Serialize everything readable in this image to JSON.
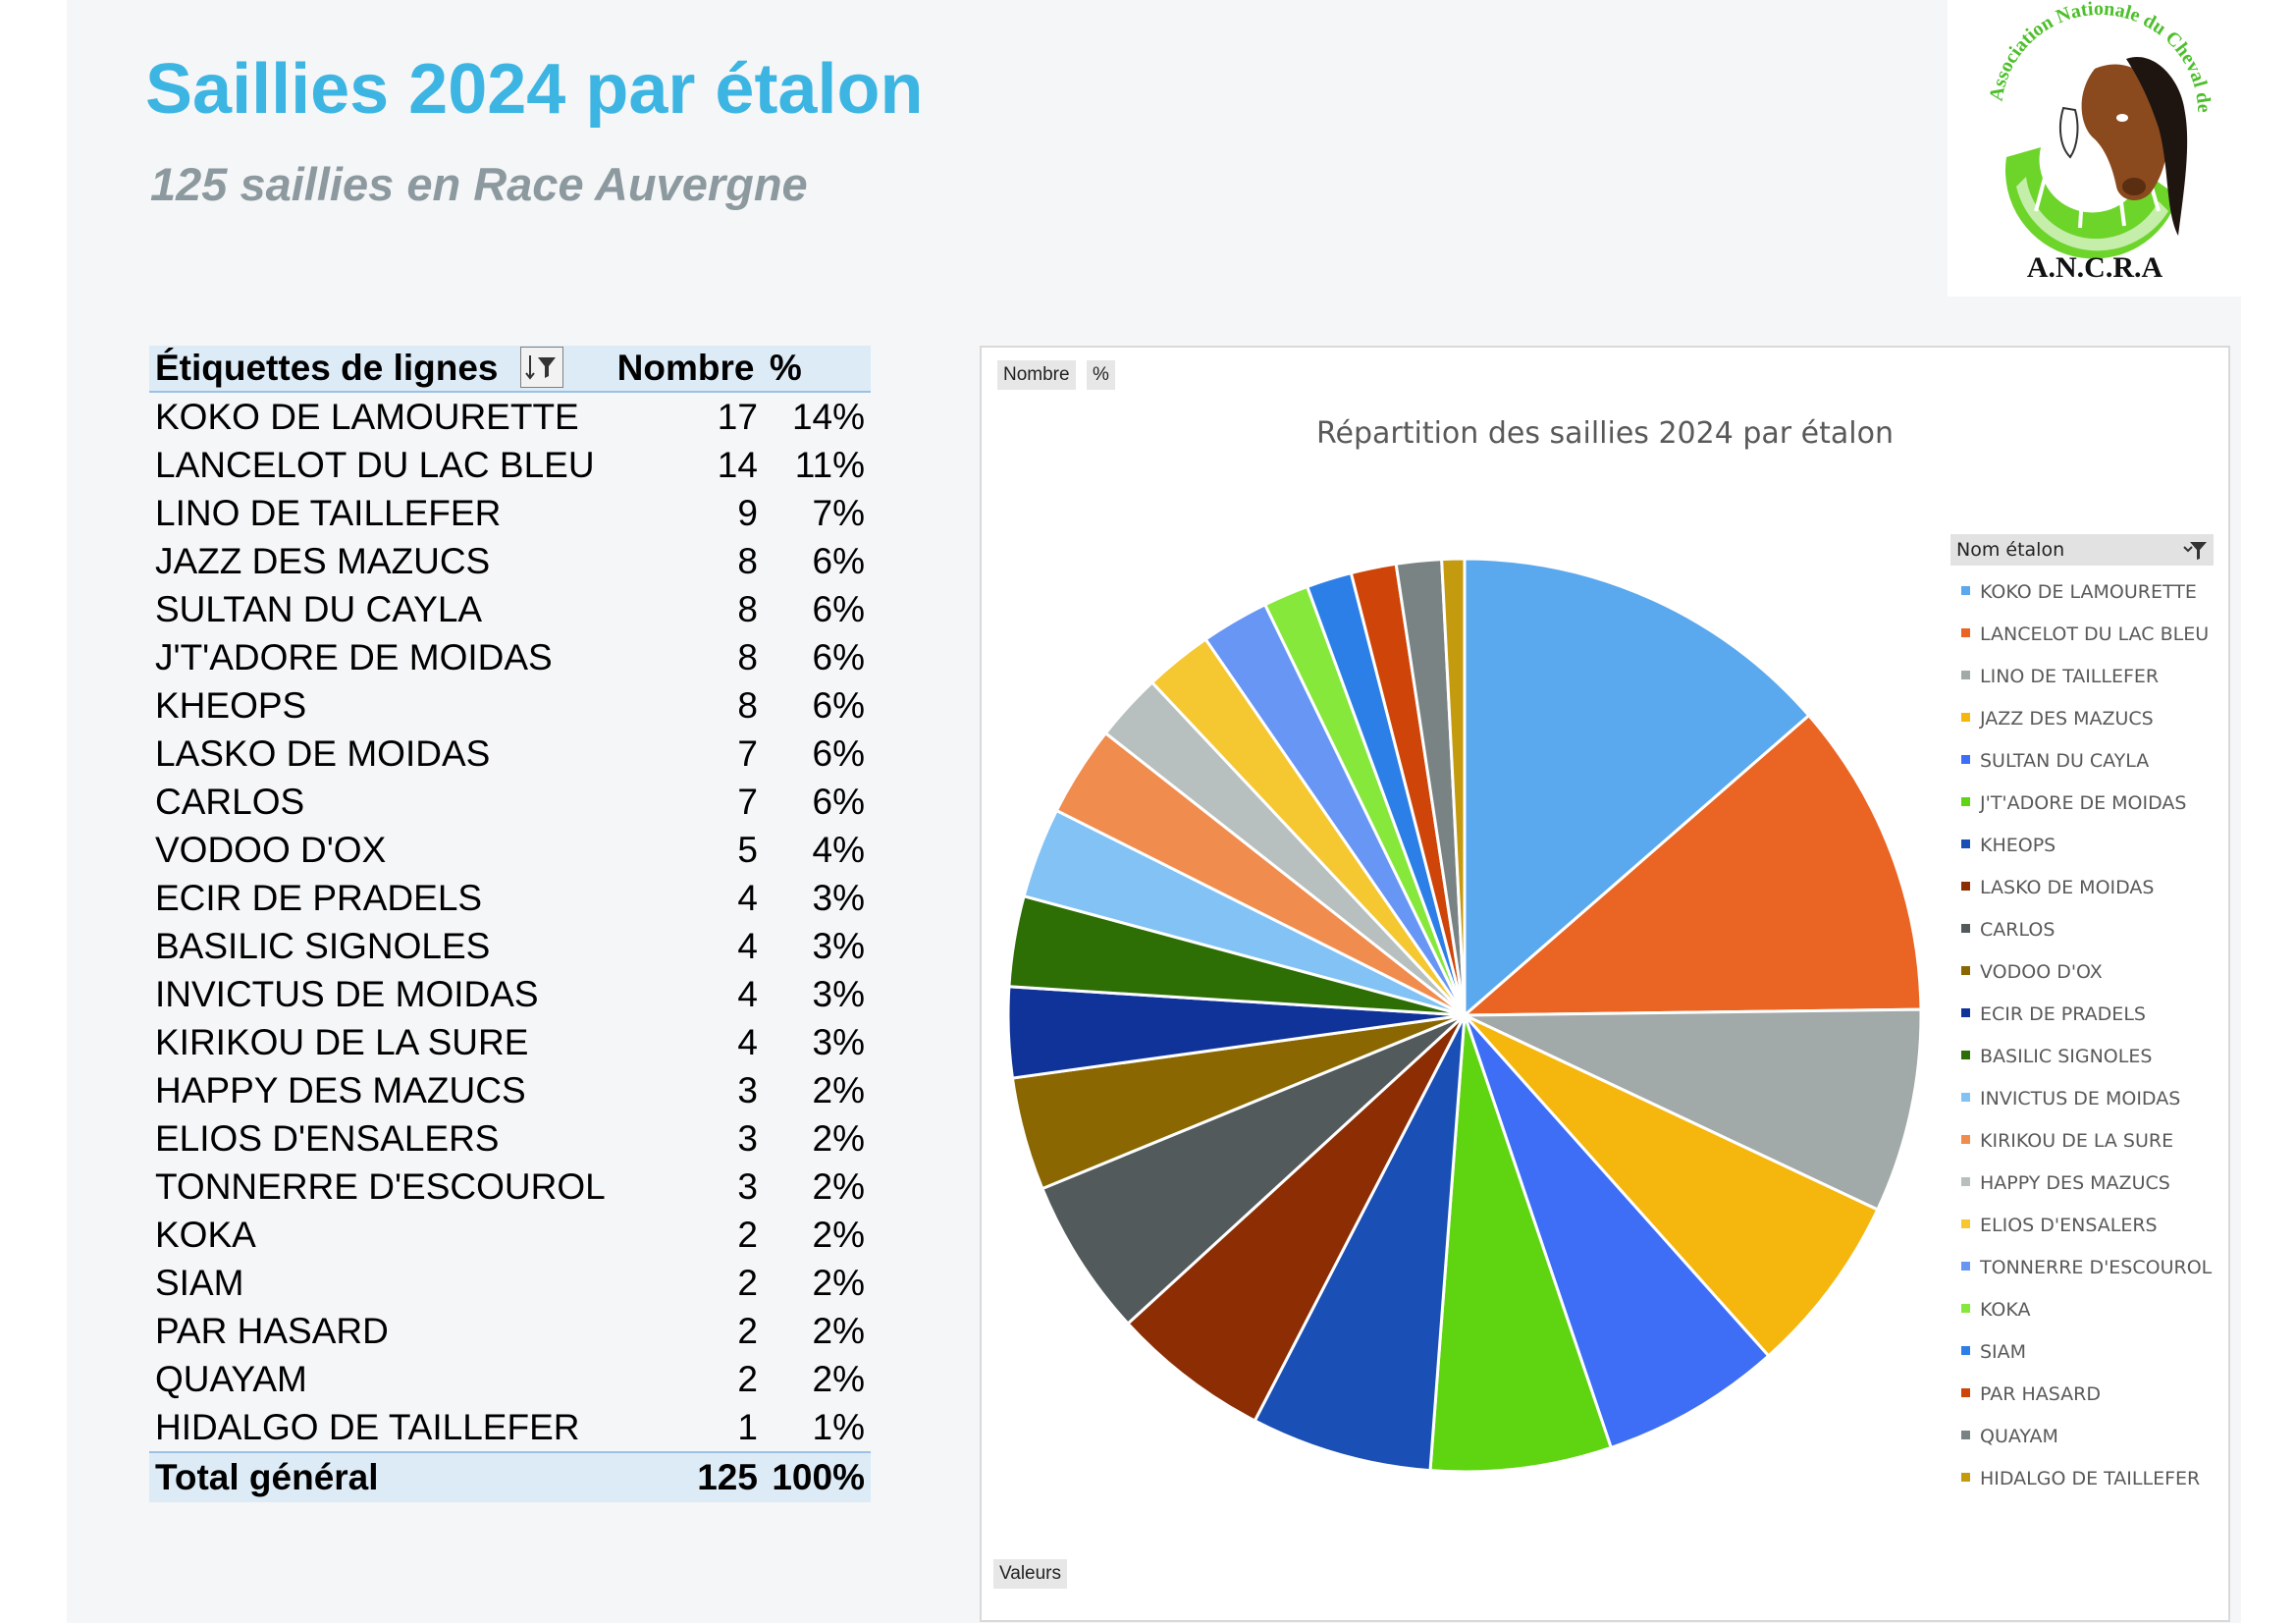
{
  "page": {
    "title": "Saillies 2024 par étalon",
    "subtitle": "125 saillies en Race Auvergne"
  },
  "logo": {
    "arc_text": "Association Nationale du Cheval de Race Auvergne",
    "initials": "A.N.C.R.A"
  },
  "table": {
    "headers": {
      "label": "Étiquettes de lignes",
      "count": "Nombre",
      "pct": "%"
    },
    "rows": [
      {
        "name": "KOKO DE LAMOURETTE",
        "count": "17",
        "pct": "14%"
      },
      {
        "name": "LANCELOT DU LAC BLEU",
        "count": "14",
        "pct": "11%"
      },
      {
        "name": "LINO DE TAILLEFER",
        "count": "9",
        "pct": "7%"
      },
      {
        "name": "JAZZ DES MAZUCS",
        "count": "8",
        "pct": "6%"
      },
      {
        "name": "SULTAN DU CAYLA",
        "count": "8",
        "pct": "6%"
      },
      {
        "name": "J'T'ADORE DE MOIDAS",
        "count": "8",
        "pct": "6%"
      },
      {
        "name": "KHEOPS",
        "count": "8",
        "pct": "6%"
      },
      {
        "name": "LASKO DE MOIDAS",
        "count": "7",
        "pct": "6%"
      },
      {
        "name": "CARLOS",
        "count": "7",
        "pct": "6%"
      },
      {
        "name": "VODOO D'OX",
        "count": "5",
        "pct": "4%"
      },
      {
        "name": "ECIR DE PRADELS",
        "count": "4",
        "pct": "3%"
      },
      {
        "name": "BASILIC SIGNOLES",
        "count": "4",
        "pct": "3%"
      },
      {
        "name": "INVICTUS DE MOIDAS",
        "count": "4",
        "pct": "3%"
      },
      {
        "name": "KIRIKOU DE LA SURE",
        "count": "4",
        "pct": "3%"
      },
      {
        "name": "HAPPY DES MAZUCS",
        "count": "3",
        "pct": "2%"
      },
      {
        "name": "ELIOS D'ENSALERS",
        "count": "3",
        "pct": "2%"
      },
      {
        "name": "TONNERRE D'ESCOUROL",
        "count": "3",
        "pct": "2%"
      },
      {
        "name": "KOKA",
        "count": "2",
        "pct": "2%"
      },
      {
        "name": "SIAM",
        "count": "2",
        "pct": "2%"
      },
      {
        "name": "PAR HASARD",
        "count": "2",
        "pct": "2%"
      },
      {
        "name": "QUAYAM",
        "count": "2",
        "pct": "2%"
      },
      {
        "name": "HIDALGO DE TAILLEFER",
        "count": "1",
        "pct": "1%"
      }
    ],
    "total": {
      "label": "Total général",
      "count": "125",
      "pct": "100%"
    }
  },
  "chart_ui": {
    "field_nombre": "Nombre",
    "field_pct": "%",
    "field_valeurs": "Valeurs",
    "legend_title": "Nom étalon"
  },
  "chart_data": {
    "type": "pie",
    "title": "Répartition des saillies 2024 par étalon",
    "legend_position": "right",
    "categories": [
      "KOKO DE LAMOURETTE",
      "LANCELOT DU LAC BLEU",
      "LINO DE TAILLEFER",
      "JAZZ DES MAZUCS",
      "SULTAN DU CAYLA",
      "J'T'ADORE DE MOIDAS",
      "KHEOPS",
      "LASKO DE MOIDAS",
      "CARLOS",
      "VODOO D'OX",
      "ECIR DE PRADELS",
      "BASILIC SIGNOLES",
      "INVICTUS DE MOIDAS",
      "KIRIKOU DE LA SURE",
      "HAPPY DES MAZUCS",
      "ELIOS D'ENSALERS",
      "TONNERRE D'ESCOUROL",
      "KOKA",
      "SIAM",
      "PAR HASARD",
      "QUAYAM",
      "HIDALGO DE TAILLEFER"
    ],
    "values": [
      17,
      14,
      9,
      8,
      8,
      8,
      8,
      7,
      7,
      5,
      4,
      4,
      4,
      4,
      3,
      3,
      3,
      2,
      2,
      2,
      2,
      1
    ],
    "colors": [
      "#5aa8ee",
      "#ea6423",
      "#a2aaa9",
      "#f5b60d",
      "#3d6ef5",
      "#5fd410",
      "#1a4fb5",
      "#8c2d04",
      "#525a5b",
      "#8a6700",
      "#10339a",
      "#2d6e05",
      "#82c2f5",
      "#f08c4e",
      "#b8bfbf",
      "#f5c730",
      "#6896f5",
      "#86e83a",
      "#2d7fe8",
      "#cf4408",
      "#7a8384",
      "#c49a0e"
    ]
  }
}
